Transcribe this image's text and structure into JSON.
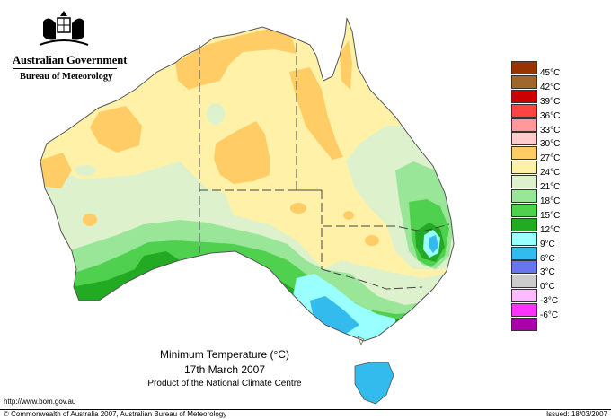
{
  "branding": {
    "government": "Australian Government",
    "agency": "Bureau of Meteorology"
  },
  "legend": {
    "items": [
      {
        "label": "45°C",
        "color": "#993300"
      },
      {
        "label": "42°C",
        "color": "#a0662e"
      },
      {
        "label": "39°C",
        "color": "#cc0000"
      },
      {
        "label": "36°C",
        "color": "#ff4444"
      },
      {
        "label": "33°C",
        "color": "#ff9999"
      },
      {
        "label": "30°C",
        "color": "#ffcccc"
      },
      {
        "label": "27°C",
        "color": "#ffcc66"
      },
      {
        "label": "24°C",
        "color": "#fff2a8"
      },
      {
        "label": "21°C",
        "color": "#ddf2cc"
      },
      {
        "label": "18°C",
        "color": "#99e699"
      },
      {
        "label": "15°C",
        "color": "#4fd14f"
      },
      {
        "label": "12°C",
        "color": "#22aa22"
      },
      {
        "label": "9°C",
        "color": "#99ffff"
      },
      {
        "label": "6°C",
        "color": "#33bbee"
      },
      {
        "label": "3°C",
        "color": "#6677ee"
      },
      {
        "label": "0°C",
        "color": "#cccccc"
      },
      {
        "label": "-3°C",
        "color": "#ffbbff"
      },
      {
        "label": "-6°C",
        "color": "#ff33ff"
      },
      {
        "label": "",
        "color": "#aa00aa"
      }
    ]
  },
  "caption": {
    "title": "Minimum Temperature (°C)",
    "date": "17th March 2007",
    "product": "Product of the National Climate Centre"
  },
  "footer": {
    "url": "http://www.bom.gov.au",
    "copyright": "© Commonwealth of Australia 2007, Australian Bureau of Meteorology",
    "issued": "Issued: 18/03/2007"
  },
  "map": {
    "icons": [
      "coat-of-arms-icon"
    ]
  }
}
